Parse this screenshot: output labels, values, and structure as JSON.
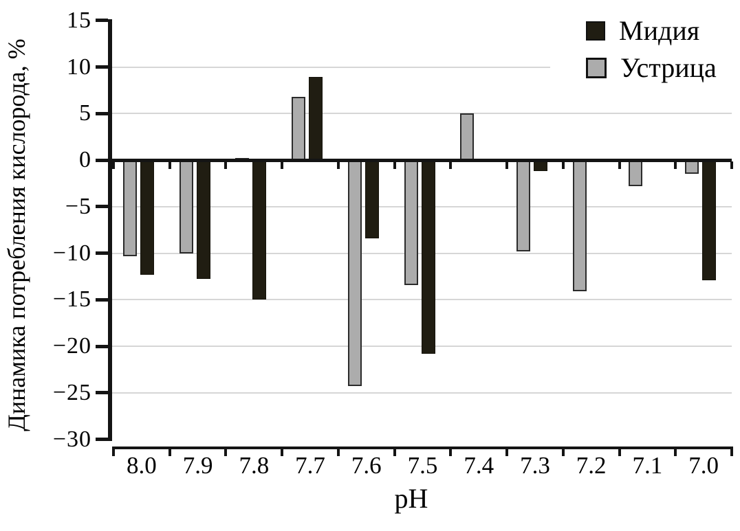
{
  "chart_data": {
    "type": "bar",
    "title": "",
    "xlabel": "pH",
    "ylabel": "Динамика потребления кислорода, %",
    "categories": [
      "8.0",
      "7.9",
      "7.8",
      "7.7",
      "7.6",
      "7.5",
      "7.4",
      "7.3",
      "7.2",
      "7.1",
      "7.0"
    ],
    "series": [
      {
        "name": "Мидия",
        "color": "#201d12",
        "values": [
          -12.3,
          -12.8,
          -15.0,
          8.9,
          -8.4,
          -20.8,
          0,
          -1.2,
          0,
          0,
          -12.9
        ]
      },
      {
        "name": "Устрица",
        "color": "#acacac",
        "values": [
          -10.3,
          -10.0,
          0.2,
          6.8,
          -24.3,
          -13.4,
          5.0,
          -9.8,
          -14.1,
          -2.8,
          -1.5
        ]
      }
    ],
    "bar_order_in_group": [
      "Устрица",
      "Мидия"
    ],
    "ylim": [
      -30,
      15
    ],
    "yticks": [
      15,
      10,
      5,
      0,
      -5,
      -10,
      -15,
      -20,
      -25,
      -30
    ],
    "ytick_labels": [
      "15",
      "10",
      "5",
      "0",
      "−5",
      "−10",
      "−15",
      "−20",
      "−25",
      "−30"
    ],
    "grid": true,
    "gridline_values": [
      10,
      5,
      -5,
      -10,
      -15,
      -20,
      -25
    ],
    "legend_position": "top-right"
  },
  "legend": {
    "items": [
      {
        "label": "Мидия",
        "color": "#201d12"
      },
      {
        "label": "Устрица",
        "color": "#acacac"
      }
    ]
  },
  "colors": {
    "bar_mussel": "#201d12",
    "bar_oyster": "#acacac",
    "oyster_border": "#2b2b2b",
    "gridline": "#d6d6d6",
    "axis": "#141414",
    "background": "#ffffff",
    "text": "#000000"
  }
}
